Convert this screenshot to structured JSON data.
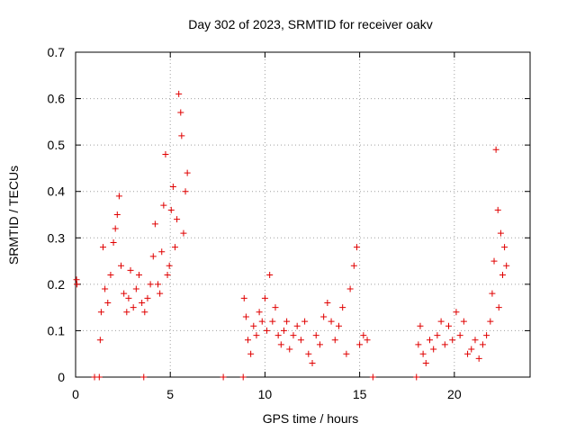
{
  "chart_data": {
    "type": "scatter",
    "title": "Day 302 of 2023, SRMTID for receiver oakv",
    "xlabel": "GPS time / hours",
    "ylabel": "SRMTID / TECUs",
    "xlim": [
      0,
      24
    ],
    "ylim": [
      0,
      0.7
    ],
    "xticks": [
      0,
      5,
      10,
      15,
      20
    ],
    "xtick_labels": [
      "0",
      "5",
      "10",
      "15",
      "20"
    ],
    "yticks": [
      0,
      0.1,
      0.2,
      0.3,
      0.4,
      0.5,
      0.6,
      0.7
    ],
    "ytick_labels": [
      "0",
      "0.1",
      "0.2",
      "0.3",
      "0.4",
      "0.5",
      "0.6",
      "0.7"
    ],
    "grid": true,
    "marker": "+",
    "color": "#e00000",
    "x": [
      0.05,
      0.07,
      1.0,
      1.25,
      1.3,
      1.35,
      1.45,
      1.55,
      1.7,
      1.85,
      2.0,
      2.1,
      2.2,
      2.3,
      2.4,
      2.55,
      2.7,
      2.8,
      2.9,
      3.05,
      3.2,
      3.35,
      3.5,
      3.65,
      3.8,
      3.95,
      4.1,
      4.2,
      4.35,
      4.45,
      4.55,
      4.65,
      4.75,
      4.85,
      4.95,
      5.05,
      5.15,
      5.25,
      5.35,
      5.45,
      5.55,
      5.6,
      5.7,
      5.8,
      5.9,
      3.6,
      7.8,
      8.85,
      8.9,
      9.0,
      9.1,
      9.25,
      9.4,
      9.55,
      9.7,
      9.85,
      10.0,
      10.1,
      10.25,
      10.4,
      10.55,
      10.7,
      10.85,
      11.0,
      11.15,
      11.3,
      11.5,
      11.7,
      11.9,
      12.1,
      12.3,
      12.5,
      12.7,
      12.9,
      13.1,
      13.3,
      13.5,
      13.7,
      13.9,
      14.1,
      14.3,
      14.5,
      14.7,
      14.85,
      15.0,
      15.2,
      15.4,
      15.7,
      18.0,
      18.1,
      18.2,
      18.35,
      18.5,
      18.7,
      18.9,
      19.1,
      19.3,
      19.5,
      19.7,
      19.9,
      20.1,
      20.3,
      20.5,
      20.7,
      20.9,
      21.1,
      21.3,
      21.5,
      21.7,
      21.9,
      22.0,
      22.1,
      22.2,
      22.3,
      22.35,
      22.45,
      22.55,
      22.65,
      22.75
    ],
    "y": [
      0.21,
      0.2,
      0.0,
      0.0,
      0.08,
      0.14,
      0.28,
      0.19,
      0.16,
      0.22,
      0.29,
      0.32,
      0.35,
      0.39,
      0.24,
      0.18,
      0.14,
      0.17,
      0.23,
      0.15,
      0.19,
      0.22,
      0.16,
      0.14,
      0.17,
      0.2,
      0.26,
      0.33,
      0.2,
      0.18,
      0.27,
      0.37,
      0.48,
      0.22,
      0.24,
      0.36,
      0.41,
      0.28,
      0.34,
      0.61,
      0.57,
      0.52,
      0.31,
      0.4,
      0.44,
      0.0,
      0.0,
      0.0,
      0.17,
      0.13,
      0.08,
      0.05,
      0.11,
      0.09,
      0.14,
      0.12,
      0.17,
      0.1,
      0.22,
      0.12,
      0.15,
      0.09,
      0.07,
      0.1,
      0.12,
      0.06,
      0.09,
      0.11,
      0.08,
      0.12,
      0.05,
      0.03,
      0.09,
      0.07,
      0.13,
      0.16,
      0.12,
      0.08,
      0.11,
      0.15,
      0.05,
      0.19,
      0.24,
      0.28,
      0.07,
      0.09,
      0.08,
      0.0,
      0.0,
      0.07,
      0.11,
      0.05,
      0.03,
      0.08,
      0.06,
      0.09,
      0.12,
      0.07,
      0.11,
      0.08,
      0.14,
      0.09,
      0.12,
      0.05,
      0.06,
      0.08,
      0.04,
      0.07,
      0.09,
      0.12,
      0.18,
      0.25,
      0.49,
      0.36,
      0.15,
      0.31,
      0.22,
      0.28,
      0.24
    ],
    "series": [
      {
        "name": "SRMTID"
      }
    ]
  }
}
